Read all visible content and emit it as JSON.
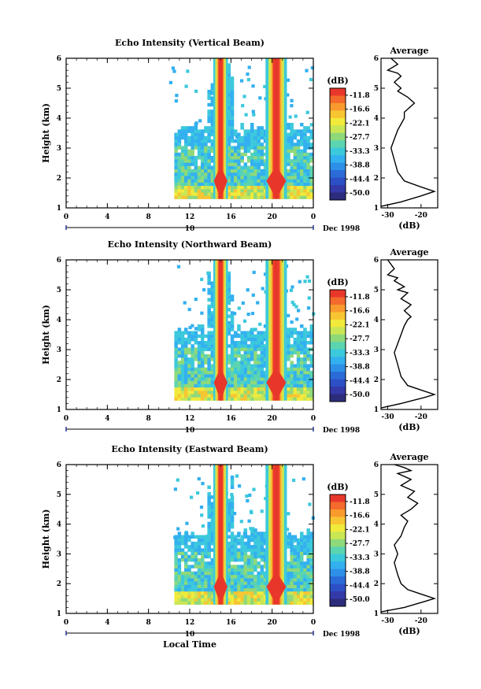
{
  "chart_data": [
    {
      "type": "heatmap",
      "title": "Echo Intensity (Vertical Beam)",
      "xlabel": "",
      "ylabel": "Height (km)",
      "xlim": [
        0,
        24
      ],
      "ylim": [
        1,
        6
      ],
      "x_ticks": [
        "0",
        "4",
        "8",
        "12",
        "16",
        "20",
        "0"
      ],
      "y_ticks": [
        "1",
        "2",
        "3",
        "4",
        "5",
        "6"
      ],
      "date_bar_label": "10",
      "date_label": "Dec 1998",
      "colorbar": {
        "title": "(dB)",
        "ticks": [
          "-11.8",
          "-16.6",
          "-22.1",
          "-27.7",
          "-33.3",
          "-38.8",
          "-44.4",
          "-50.0"
        ]
      },
      "profile": {
        "title": "Average",
        "xlabel": "(dB)",
        "x_ticks": [
          "-30",
          "-20"
        ],
        "xlim": [
          -32,
          -15
        ],
        "ylim": [
          1,
          6
        ],
        "points": [
          [
            -32,
            1.05
          ],
          [
            -26,
            1.2
          ],
          [
            -20,
            1.4
          ],
          [
            -16,
            1.55
          ],
          [
            -20,
            1.7
          ],
          [
            -25,
            1.9
          ],
          [
            -27,
            2.2
          ],
          [
            -28,
            2.6
          ],
          [
            -29,
            3.0
          ],
          [
            -28,
            3.3
          ],
          [
            -27,
            3.6
          ],
          [
            -26,
            3.8
          ],
          [
            -25,
            4.0
          ],
          [
            -25,
            4.2
          ],
          [
            -24,
            4.3
          ],
          [
            -22,
            4.5
          ],
          [
            -24,
            4.7
          ],
          [
            -27,
            4.9
          ],
          [
            -26,
            5.0
          ],
          [
            -28,
            5.2
          ],
          [
            -26,
            5.4
          ],
          [
            -27,
            5.5
          ],
          [
            -30,
            5.6
          ],
          [
            -27,
            5.8
          ],
          [
            -29,
            6.0
          ]
        ]
      }
    },
    {
      "type": "heatmap",
      "title": "Echo Intensity (Northward Beam)",
      "xlabel": "",
      "ylabel": "Height (km)",
      "xlim": [
        0,
        24
      ],
      "ylim": [
        1,
        6
      ],
      "x_ticks": [
        "0",
        "4",
        "8",
        "12",
        "16",
        "20",
        "0"
      ],
      "y_ticks": [
        "1",
        "2",
        "3",
        "4",
        "5",
        "6"
      ],
      "date_bar_label": "10",
      "date_label": "Dec 1998",
      "colorbar": {
        "title": "(dB)",
        "ticks": [
          "-11.8",
          "-16.6",
          "-22.1",
          "-27.7",
          "-33.3",
          "-38.8",
          "-44.4",
          "-50.0"
        ]
      },
      "profile": {
        "title": "Average",
        "xlabel": "(dB)",
        "x_ticks": [
          "-30",
          "-20"
        ],
        "xlim": [
          -32,
          -15
        ],
        "ylim": [
          1,
          6
        ],
        "points": [
          [
            -32,
            1.05
          ],
          [
            -26,
            1.2
          ],
          [
            -19,
            1.4
          ],
          [
            -16,
            1.5
          ],
          [
            -20,
            1.65
          ],
          [
            -24,
            1.8
          ],
          [
            -26,
            2.1
          ],
          [
            -27,
            2.5
          ],
          [
            -28,
            2.9
          ],
          [
            -27,
            3.2
          ],
          [
            -26,
            3.5
          ],
          [
            -25,
            3.8
          ],
          [
            -24,
            4.0
          ],
          [
            -23,
            4.1
          ],
          [
            -25,
            4.3
          ],
          [
            -23,
            4.5
          ],
          [
            -26,
            4.7
          ],
          [
            -24,
            4.9
          ],
          [
            -27,
            5.0
          ],
          [
            -25,
            5.1
          ],
          [
            -28,
            5.3
          ],
          [
            -27,
            5.4
          ],
          [
            -30,
            5.5
          ],
          [
            -28,
            5.7
          ],
          [
            -30,
            6.0
          ]
        ]
      }
    },
    {
      "type": "heatmap",
      "title": "Echo Intensity (Eastward Beam)",
      "xlabel": "Local Time",
      "ylabel": "Height (km)",
      "xlim": [
        0,
        24
      ],
      "ylim": [
        1,
        6
      ],
      "x_ticks": [
        "0",
        "4",
        "8",
        "12",
        "16",
        "20",
        "0"
      ],
      "y_ticks": [
        "1",
        "2",
        "3",
        "4",
        "5",
        "6"
      ],
      "date_bar_label": "10",
      "date_label": "Dec 1998",
      "colorbar": {
        "title": "(dB)",
        "ticks": [
          "-11.8",
          "-16.6",
          "-22.1",
          "-27.7",
          "-33.3",
          "-38.8",
          "-44.4",
          "-50.0"
        ]
      },
      "profile": {
        "title": "Average",
        "xlabel": "(dB)",
        "x_ticks": [
          "-30",
          "-20"
        ],
        "xlim": [
          -32,
          -15
        ],
        "ylim": [
          1,
          6
        ],
        "points": [
          [
            -32,
            1.05
          ],
          [
            -25,
            1.2
          ],
          [
            -19,
            1.4
          ],
          [
            -16,
            1.5
          ],
          [
            -20,
            1.65
          ],
          [
            -24,
            1.8
          ],
          [
            -26,
            2.0
          ],
          [
            -27,
            2.3
          ],
          [
            -28,
            2.7
          ],
          [
            -27,
            3.0
          ],
          [
            -28,
            3.3
          ],
          [
            -26,
            3.6
          ],
          [
            -25,
            3.9
          ],
          [
            -24,
            4.1
          ],
          [
            -26,
            4.3
          ],
          [
            -23,
            4.5
          ],
          [
            -21,
            4.7
          ],
          [
            -24,
            4.9
          ],
          [
            -22,
            5.1
          ],
          [
            -26,
            5.3
          ],
          [
            -23,
            5.5
          ],
          [
            -27,
            5.7
          ],
          [
            -23,
            5.8
          ],
          [
            -25,
            5.9
          ],
          [
            -28,
            6.0
          ]
        ]
      }
    }
  ]
}
